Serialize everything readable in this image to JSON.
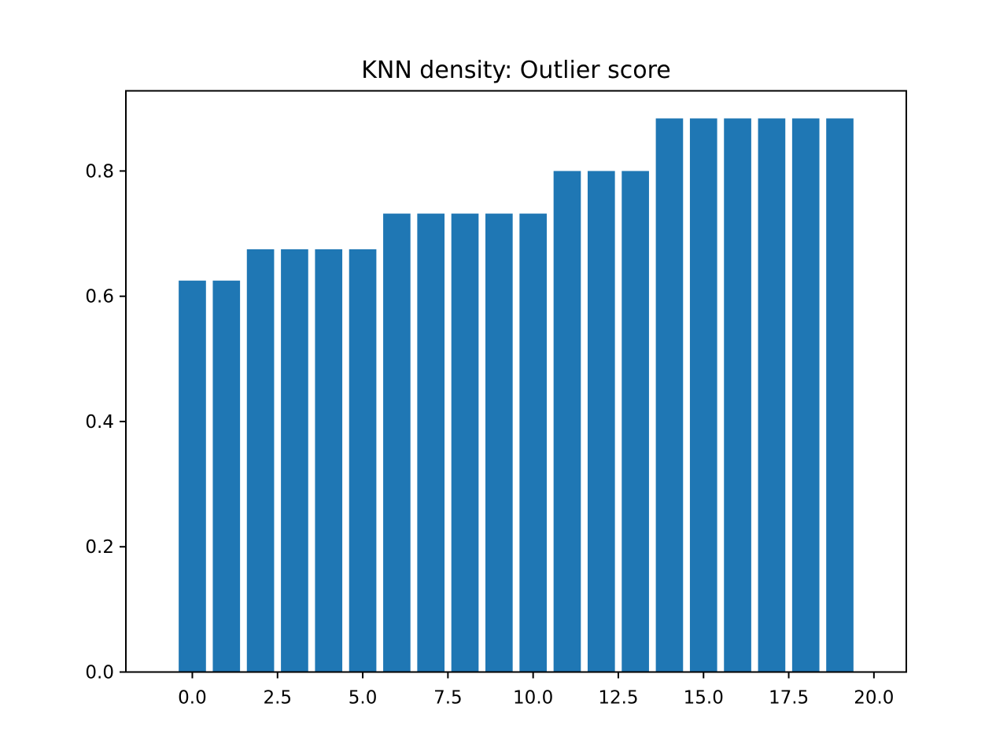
{
  "chart_data": {
    "type": "bar",
    "title": "KNN density: Outlier score",
    "xlabel": "",
    "ylabel": "",
    "x": [
      0,
      1,
      2,
      3,
      4,
      5,
      6,
      7,
      8,
      9,
      10,
      11,
      12,
      13,
      14,
      15,
      16,
      17,
      18,
      19
    ],
    "values": [
      0.625,
      0.625,
      0.675,
      0.675,
      0.675,
      0.675,
      0.732,
      0.732,
      0.732,
      0.732,
      0.732,
      0.8,
      0.8,
      0.8,
      0.884,
      0.884,
      0.884,
      0.884,
      0.884,
      0.884
    ],
    "xlim": [
      -1.95,
      20.95
    ],
    "ylim": [
      0,
      0.928
    ],
    "xticks": [
      "0.0",
      "2.5",
      "5.0",
      "7.5",
      "10.0",
      "12.5",
      "15.0",
      "17.5",
      "20.0"
    ],
    "xtick_values": [
      0,
      2.5,
      5,
      7.5,
      10,
      12.5,
      15,
      17.5,
      20
    ],
    "yticks": [
      "0.0",
      "0.2",
      "0.4",
      "0.6",
      "0.8"
    ],
    "ytick_values": [
      0,
      0.2,
      0.4,
      0.6,
      0.8
    ],
    "bar_color": "#1f77b4",
    "grid": false,
    "legend": false
  }
}
